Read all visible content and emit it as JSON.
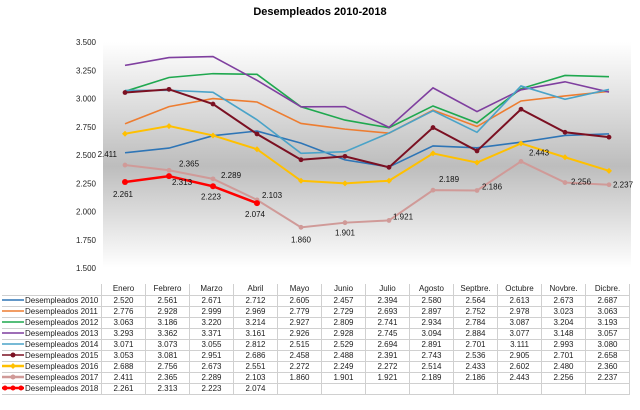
{
  "chart_data": {
    "type": "line",
    "title": "Desempleados 2010-2018",
    "categories": [
      "Enero",
      "Febrero",
      "Marzo",
      "Abril",
      "Mayo",
      "Junio",
      "Julio",
      "Agosto",
      "Septbre.",
      "Octubre",
      "Novbre.",
      "Dicbre."
    ],
    "ylim": [
      1500,
      3500
    ],
    "yticks": [
      "1.500",
      "1.750",
      "2.000",
      "2.250",
      "2.500",
      "2.750",
      "3.000",
      "3.250",
      "3.500"
    ],
    "grid": false,
    "legend": "bottom (data table)",
    "series": [
      {
        "name": "Desempleados 2010",
        "color": "#2e75b6",
        "marker": "none",
        "values": [
          2520,
          2561,
          2671,
          2712,
          2605,
          2457,
          2394,
          2580,
          2564,
          2613,
          2673,
          2687
        ],
        "labels": [
          "2.520",
          "2.561",
          "2.671",
          "2.712",
          "2.605",
          "2.457",
          "2.394",
          "2.580",
          "2.564",
          "2.613",
          "2.673",
          "2.687"
        ]
      },
      {
        "name": "Desempleados 2011",
        "color": "#ed7d31",
        "marker": "none",
        "values": [
          2776,
          2928,
          2999,
          2969,
          2779,
          2729,
          2693,
          2897,
          2752,
          2978,
          3023,
          3063
        ],
        "labels": [
          "2.776",
          "2.928",
          "2.999",
          "2.969",
          "2.779",
          "2.729",
          "2.693",
          "2.897",
          "2.752",
          "2.978",
          "3.023",
          "3.063"
        ]
      },
      {
        "name": "Desempleados 2012",
        "color": "#1fa84f",
        "marker": "none",
        "values": [
          3063,
          3186,
          3220,
          3214,
          2927,
          2809,
          2741,
          2934,
          2784,
          3087,
          3204,
          3193
        ],
        "labels": [
          "3.063",
          "3.186",
          "3.220",
          "3.214",
          "2.927",
          "2.809",
          "2.741",
          "2.934",
          "2.784",
          "3.087",
          "3.204",
          "3.193"
        ]
      },
      {
        "name": "Desempleados 2013",
        "color": "#7f3f9f",
        "marker": "none",
        "values": [
          3293,
          3362,
          3371,
          3161,
          2926,
          2928,
          2745,
          3094,
          2884,
          3077,
          3148,
          3057
        ],
        "labels": [
          "3.293",
          "3.362",
          "3.371",
          "3.161",
          "2.926",
          "2.928",
          "2.745",
          "3.094",
          "2.884",
          "3.077",
          "3.148",
          "3.057"
        ]
      },
      {
        "name": "Desempleados 2014",
        "color": "#4aa3c8",
        "marker": "none",
        "values": [
          3071,
          3073,
          3055,
          2812,
          2515,
          2529,
          2694,
          2891,
          2701,
          3111,
          2993,
          3080
        ],
        "labels": [
          "3.071",
          "3.073",
          "3.055",
          "2.812",
          "2.515",
          "2.529",
          "2.694",
          "2.891",
          "2.701",
          "3.111",
          "2.993",
          "3.080"
        ]
      },
      {
        "name": "Desempleados 2015",
        "color": "#7b1022",
        "marker": "circle",
        "values": [
          3053,
          3081,
          2951,
          2686,
          2458,
          2488,
          2391,
          2743,
          2536,
          2905,
          2701,
          2658
        ],
        "labels": [
          "3.053",
          "3.081",
          "2.951",
          "2.686",
          "2.458",
          "2.488",
          "2.391",
          "2.743",
          "2.536",
          "2.905",
          "2.701",
          "2.658"
        ]
      },
      {
        "name": "Desempleados 2016",
        "color": "#ffc000",
        "marker": "diamond",
        "values": [
          2688,
          2756,
          2673,
          2551,
          2272,
          2249,
          2272,
          2514,
          2433,
          2602,
          2480,
          2360
        ],
        "labels": [
          "2.688",
          "2.756",
          "2.673",
          "2.551",
          "2.272",
          "2.249",
          "2.272",
          "2.514",
          "2.433",
          "2.602",
          "2.480",
          "2.360"
        ]
      },
      {
        "name": "Desempleados 2017",
        "color": "#d09a98",
        "marker": "circle",
        "values": [
          2411,
          2365,
          2289,
          2103,
          1860,
          1901,
          1921,
          2189,
          2186,
          2443,
          2256,
          2237
        ],
        "labels": [
          "2.411",
          "2.365",
          "2.289",
          "2.103",
          "1.860",
          "1.901",
          "1.921",
          "2.189",
          "2.186",
          "2.443",
          "2.256",
          "2.237"
        ],
        "data_labels": true
      },
      {
        "name": "Desempleados 2018",
        "color": "#ff0000",
        "marker": "circle",
        "values": [
          2261,
          2313,
          2223,
          2074,
          null,
          null,
          null,
          null,
          null,
          null,
          null,
          null
        ],
        "labels": [
          "2.261",
          "2.313",
          "2.223",
          "2.074",
          "",
          "",
          "",
          "",
          "",
          "",
          "",
          ""
        ],
        "data_labels": true
      }
    ]
  }
}
